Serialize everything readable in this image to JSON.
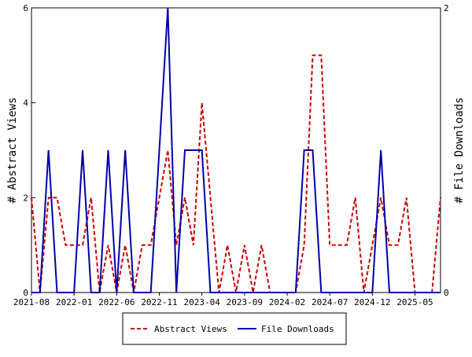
{
  "chart_data": {
    "type": "line",
    "x": [
      "2021-08",
      "2021-09",
      "2021-10",
      "2021-11",
      "2021-12",
      "2022-01",
      "2022-02",
      "2022-03",
      "2022-04",
      "2022-05",
      "2022-06",
      "2022-07",
      "2022-08",
      "2022-09",
      "2022-10",
      "2022-11",
      "2022-12",
      "2023-01",
      "2023-02",
      "2023-03",
      "2023-04",
      "2023-05",
      "2023-06",
      "2023-07",
      "2023-08",
      "2023-09",
      "2023-10",
      "2023-11",
      "2023-12",
      "2024-01",
      "2024-02",
      "2024-03",
      "2024-04",
      "2024-05",
      "2024-06",
      "2024-07",
      "2024-08",
      "2024-09",
      "2024-10",
      "2024-11",
      "2024-12",
      "2025-01",
      "2025-02",
      "2025-03",
      "2025-04",
      "2025-05",
      "2025-06",
      "2025-07",
      "2025-08"
    ],
    "xticks": [
      "2021-08",
      "2022-01",
      "2022-06",
      "2022-11",
      "2023-04",
      "2023-09",
      "2024-02",
      "2024-07",
      "2024-12",
      "2025-05"
    ],
    "ylabel": "# Abstract Views",
    "y2label": "# File Downloads",
    "ylim": [
      0,
      6
    ],
    "yticks": [
      0,
      2,
      4,
      6
    ],
    "y2lim": [
      0,
      2
    ],
    "y2ticks": [
      0,
      2
    ],
    "series": [
      {
        "name": "Abstract Views",
        "color": "#cc0000",
        "dashed": true,
        "values": [
          2,
          0,
          2,
          2,
          1,
          1,
          1,
          2,
          0,
          1,
          0,
          1,
          0,
          1,
          1,
          2,
          3,
          1,
          2,
          1,
          4,
          2,
          0,
          1,
          0,
          1,
          0,
          1,
          0,
          0,
          0,
          0,
          1,
          5,
          5,
          1,
          1,
          1,
          2,
          0,
          1,
          2,
          1,
          1,
          2,
          0,
          0,
          0,
          2
        ]
      },
      {
        "name": "File Downloads",
        "color": "#0000aa",
        "axis": "y2",
        "values": [
          0,
          0,
          1,
          0,
          0,
          0,
          1,
          0,
          0,
          1,
          0,
          1,
          0,
          0,
          0,
          1,
          2,
          0,
          1,
          1,
          1,
          0,
          0,
          0,
          0,
          0,
          0,
          0,
          0,
          0,
          0,
          0,
          1,
          1,
          0,
          0,
          0,
          0,
          0,
          0,
          0,
          1,
          0,
          0,
          0,
          0,
          0,
          0,
          0
        ]
      }
    ]
  }
}
